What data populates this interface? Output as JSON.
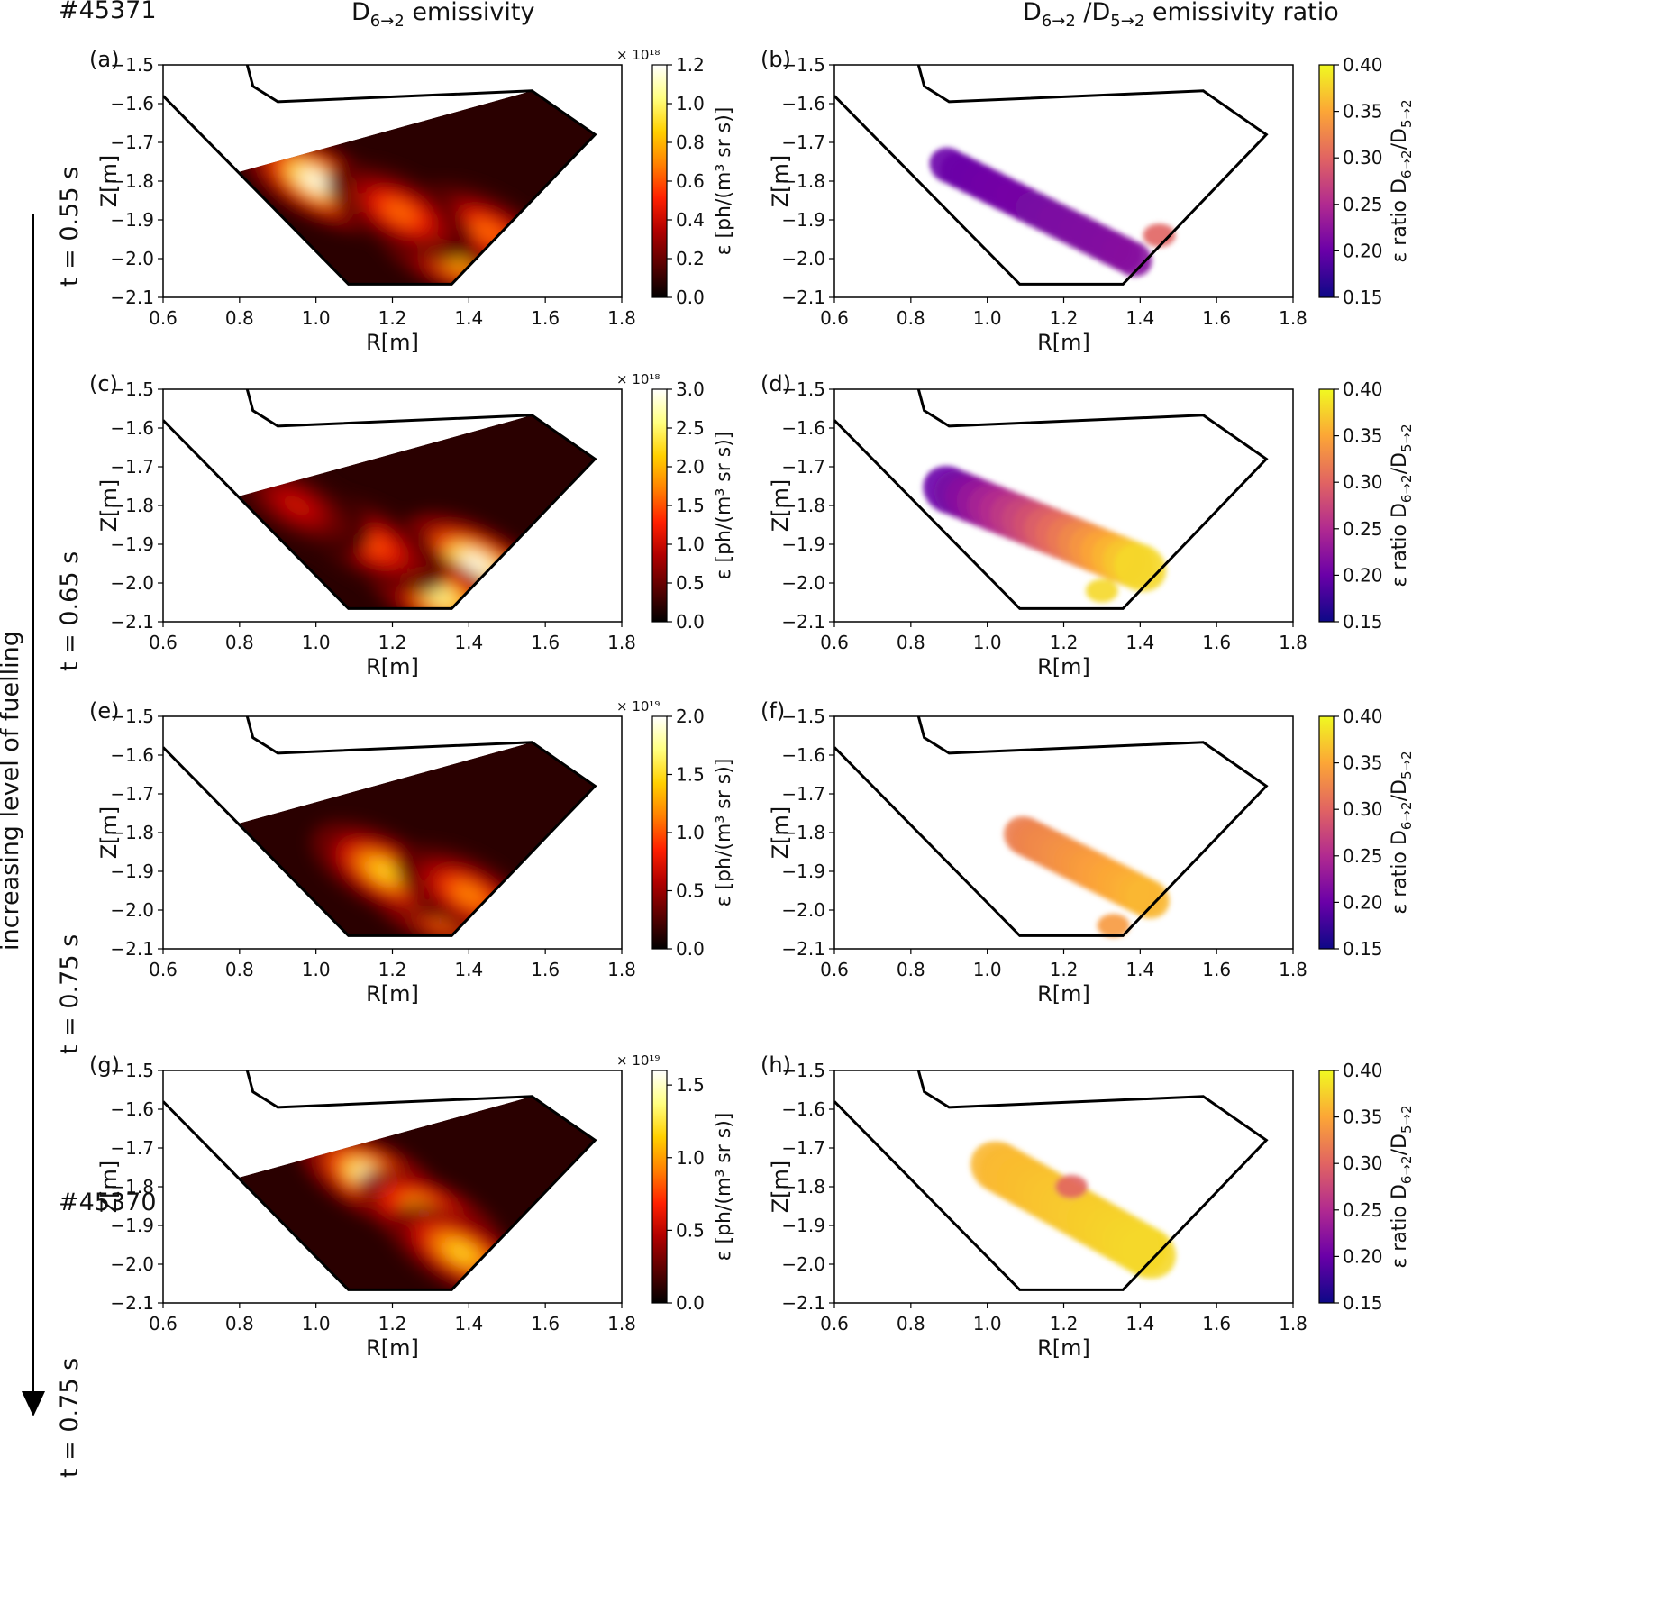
{
  "header": {
    "shot_top": "#45371",
    "shot_bottom": "#45370",
    "col_left_main": "D",
    "col_left_sub": "6→2",
    "col_left_rest": " emissivity",
    "col_right_main1": "D",
    "col_right_sub1": "6→2",
    "col_right_mid": " /D",
    "col_right_sub2": "5→2",
    "col_right_rest": " emissivity ratio"
  },
  "side_arrow_label": "increasing level of fuelling",
  "rows": [
    {
      "time_label": "t = 0.55 s"
    },
    {
      "time_label": "t = 0.65 s"
    },
    {
      "time_label": "t = 0.75 s"
    },
    {
      "time_label": "t = 0.75 s"
    }
  ],
  "axis_text": {
    "xlabel": "R[m]",
    "ylabel": "Z[m]",
    "x_ticks": [
      "0.6",
      "0.8",
      "1.0",
      "1.2",
      "1.4",
      "1.6",
      "1.8"
    ],
    "y_ticks": [
      "−1.5",
      "−1.6",
      "−1.7",
      "−1.8",
      "−1.9",
      "−2.0",
      "−2.1"
    ],
    "ratio_ticks": [
      "0.40",
      "0.35",
      "0.30",
      "0.25",
      "0.20",
      "0.15"
    ],
    "emis_cbar_label": "ε [ph/(m³ sr s)]",
    "ratio_cbar_main": "ε ratio D",
    "ratio_cbar_sub1": "6→2",
    "ratio_cbar_mid": "/D",
    "ratio_cbar_sub2": "5→2"
  },
  "colors": {
    "separatrix": "#1010c0",
    "flux_surfaces": "#00e0f0",
    "wall": "#000000",
    "hot_colormap": [
      "#000000",
      "#5a0000",
      "#b00000",
      "#ff2000",
      "#ff8000",
      "#ffd000",
      "#ffff80",
      "#ffffff"
    ],
    "plasma_colormap": [
      "#0d0887",
      "#6a00a8",
      "#b12a90",
      "#e16462",
      "#fca636",
      "#f0f921"
    ]
  },
  "chart_data": [
    {
      "panel": "(a)",
      "type": "heatmap",
      "quantity": "D6→2 emissivity",
      "xlabel": "R[m]",
      "ylabel": "Z[m]",
      "xlim": [
        0.6,
        1.8
      ],
      "ylim": [
        -2.1,
        -1.5
      ],
      "colorbar": {
        "label": "ε [ph/(m³ sr s)]",
        "exponent": "× 10¹⁸",
        "range": [
          0.0,
          1.2
        ],
        "ticks": [
          "0.0",
          "0.2",
          "0.4",
          "0.6",
          "0.8",
          "1.0",
          "1.2"
        ]
      },
      "blobs": [
        {
          "r": 1.0,
          "z": -1.8,
          "rel": 1.0
        },
        {
          "r": 1.35,
          "z": -1.99,
          "rel": 0.75
        },
        {
          "r": 1.45,
          "z": -1.93,
          "rel": 0.55
        },
        {
          "r": 1.22,
          "z": -1.88,
          "rel": 0.55
        }
      ]
    },
    {
      "panel": "(b)",
      "type": "heatmap",
      "quantity": "D6→2/D5→2 emissivity ratio",
      "xlabel": "R[m]",
      "ylabel": "Z[m]",
      "xlim": [
        0.6,
        1.8
      ],
      "ylim": [
        -2.1,
        -1.5
      ],
      "colorbar": {
        "label": "ε ratio D6→2/D5→2",
        "range": [
          0.15,
          0.4
        ],
        "ticks": [
          "0.15",
          "0.20",
          "0.25",
          "0.30",
          "0.35",
          "0.40"
        ]
      },
      "region": {
        "r_start": 0.9,
        "z_start": -1.76,
        "r_end": 1.38,
        "z_end": -2.0,
        "half_width": 0.045
      },
      "ratio_start": 0.2,
      "ratio_end": 0.22,
      "extra": {
        "r": 1.45,
        "z": -1.94,
        "ratio": 0.3
      }
    },
    {
      "panel": "(c)",
      "type": "heatmap",
      "quantity": "D6→2 emissivity",
      "xlabel": "R[m]",
      "ylabel": "Z[m]",
      "xlim": [
        0.6,
        1.8
      ],
      "ylim": [
        -2.1,
        -1.5
      ],
      "colorbar": {
        "label": "ε [ph/(m³ sr s)]",
        "exponent": "× 10¹⁸",
        "range": [
          0.0,
          3.0
        ],
        "ticks": [
          "0.0",
          "0.5",
          "1.0",
          "1.5",
          "2.0",
          "2.5",
          "3.0"
        ]
      },
      "blobs": [
        {
          "r": 1.42,
          "z": -1.95,
          "rel": 1.0
        },
        {
          "r": 1.32,
          "z": -2.03,
          "rel": 0.9
        },
        {
          "r": 1.15,
          "z": -1.9,
          "rel": 0.5
        },
        {
          "r": 0.95,
          "z": -1.8,
          "rel": 0.35
        }
      ]
    },
    {
      "panel": "(d)",
      "type": "heatmap",
      "quantity": "D6→2/D5→2 emissivity ratio",
      "xlabel": "R[m]",
      "ylabel": "Z[m]",
      "xlim": [
        0.6,
        1.8
      ],
      "ylim": [
        -2.1,
        -1.5
      ],
      "colorbar": {
        "label": "ε ratio D6→2/D5→2",
        "range": [
          0.15,
          0.4
        ],
        "ticks": [
          "0.15",
          "0.20",
          "0.25",
          "0.30",
          "0.35",
          "0.40"
        ]
      },
      "region": {
        "r_start": 0.9,
        "z_start": -1.76,
        "r_end": 1.4,
        "z_end": -1.96,
        "half_width": 0.06
      },
      "ratio_start": 0.2,
      "ratio_end": 0.38,
      "extra": {
        "r": 1.3,
        "z": -2.02,
        "ratio": 0.38
      }
    },
    {
      "panel": "(e)",
      "type": "heatmap",
      "quantity": "D6→2 emissivity",
      "xlabel": "R[m]",
      "ylabel": "Z[m]",
      "xlim": [
        0.6,
        1.8
      ],
      "ylim": [
        -2.1,
        -1.5
      ],
      "colorbar": {
        "label": "ε [ph/(m³ sr s)]",
        "exponent": "× 10¹⁹",
        "range": [
          0.0,
          2.0
        ],
        "ticks": [
          "0.0",
          "0.5",
          "1.0",
          "1.5",
          "2.0"
        ]
      },
      "blobs": [
        {
          "r": 1.3,
          "z": -1.98,
          "rel": 1.0
        },
        {
          "r": 1.18,
          "z": -1.9,
          "rel": 0.75
        },
        {
          "r": 1.4,
          "z": -1.96,
          "rel": 0.6
        }
      ]
    },
    {
      "panel": "(f)",
      "type": "heatmap",
      "quantity": "D6→2/D5→2 emissivity ratio",
      "xlabel": "R[m]",
      "ylabel": "Z[m]",
      "xlim": [
        0.6,
        1.8
      ],
      "ylim": [
        -2.1,
        -1.5
      ],
      "colorbar": {
        "label": "ε ratio D6→2/D5→2",
        "range": [
          0.15,
          0.4
        ],
        "ticks": [
          "0.15",
          "0.20",
          "0.25",
          "0.30",
          "0.35",
          "0.40"
        ]
      },
      "region": {
        "r_start": 1.1,
        "z_start": -1.81,
        "r_end": 1.42,
        "z_end": -1.97,
        "half_width": 0.05
      },
      "ratio_start": 0.32,
      "ratio_end": 0.36,
      "extra": {
        "r": 1.33,
        "z": -2.04,
        "ratio": 0.34
      }
    },
    {
      "panel": "(g)",
      "type": "heatmap",
      "quantity": "D6→2 emissivity",
      "xlabel": "R[m]",
      "ylabel": "Z[m]",
      "xlim": [
        0.6,
        1.8
      ],
      "ylim": [
        -2.1,
        -1.5
      ],
      "colorbar": {
        "label": "ε [ph/(m³ sr s)]",
        "exponent": "× 10¹⁹",
        "range": [
          0.0,
          1.6
        ],
        "ticks": [
          "0.0",
          "0.5",
          "1.0",
          "1.5"
        ]
      },
      "blobs": [
        {
          "r": 1.15,
          "z": -1.78,
          "rel": 1.0
        },
        {
          "r": 1.3,
          "z": -1.88,
          "rel": 0.85
        },
        {
          "r": 1.38,
          "z": -1.97,
          "rel": 0.75
        }
      ]
    },
    {
      "panel": "(h)",
      "type": "heatmap",
      "quantity": "D6→2/D5→2 emissivity ratio",
      "xlabel": "R[m]",
      "ylabel": "Z[m]",
      "xlim": [
        0.6,
        1.8
      ],
      "ylim": [
        -2.1,
        -1.5
      ],
      "colorbar": {
        "label": "ε ratio D6→2/D5→2",
        "range": [
          0.15,
          0.4
        ],
        "ticks": [
          "0.15",
          "0.20",
          "0.25",
          "0.30",
          "0.35",
          "0.40"
        ]
      },
      "region": {
        "r_start": 1.03,
        "z_start": -1.75,
        "r_end": 1.42,
        "z_end": -1.97,
        "half_width": 0.065
      },
      "ratio_start": 0.36,
      "ratio_end": 0.38,
      "extra": {
        "r": 1.22,
        "z": -1.8,
        "ratio": 0.3
      }
    }
  ]
}
